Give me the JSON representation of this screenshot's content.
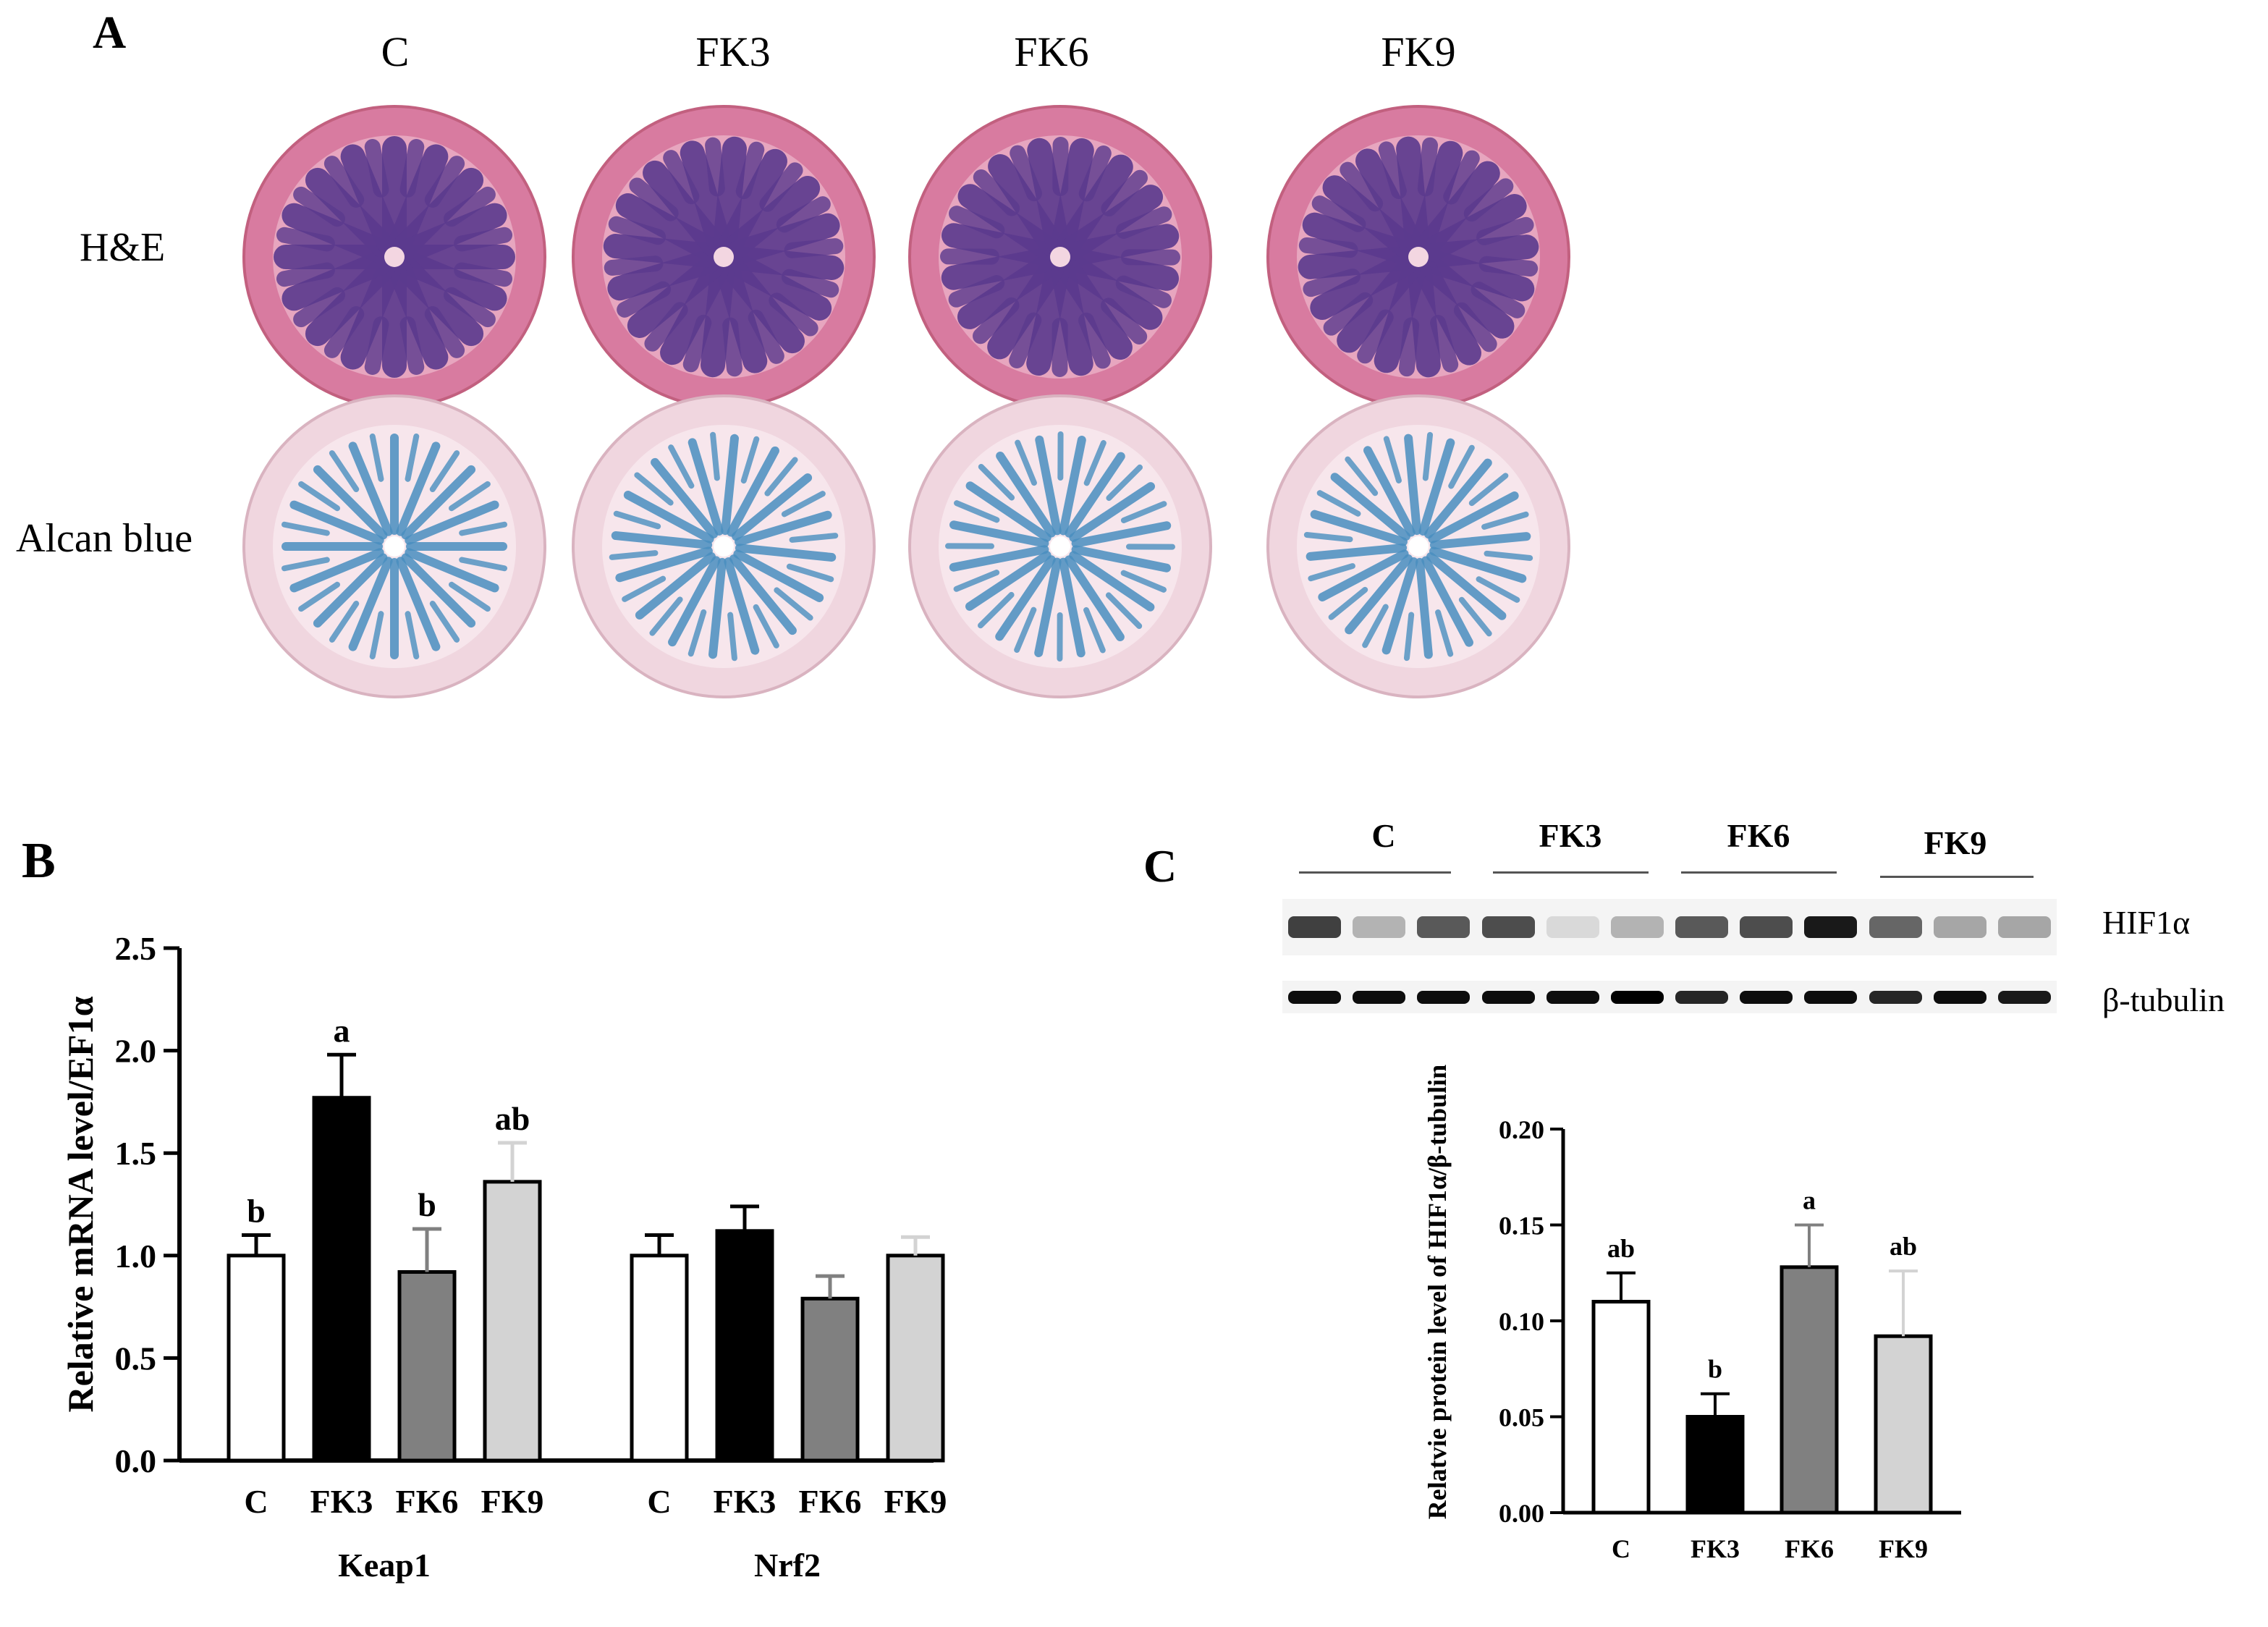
{
  "panel_a": {
    "letter": "A",
    "columns": [
      "C",
      "FK3",
      "FK6",
      "FK9"
    ],
    "rows": [
      "H&E",
      "Alcan blue"
    ],
    "colors": {
      "he_outer": "#d87ba0",
      "he_inner": "#5b3a8e",
      "ab_outer": "#f0d6df",
      "ab_inner": "#4a8fc0"
    }
  },
  "panel_b": {
    "letter": "B",
    "chart_data": {
      "type": "bar",
      "ylabel": "Relative mRNA level/EF1α",
      "ylim": [
        0,
        2.5
      ],
      "yticks": [
        "0.0",
        "0.5",
        "1.0",
        "1.5",
        "2.0",
        "2.5"
      ],
      "groups": [
        {
          "name": "Keap1",
          "bars": [
            {
              "label": "C",
              "value": 1.0,
              "error": 0.1,
              "sig": "b",
              "color": "#ffffff"
            },
            {
              "label": "FK3",
              "value": 1.77,
              "error": 0.21,
              "sig": "a",
              "color": "#000000"
            },
            {
              "label": "FK6",
              "value": 0.92,
              "error": 0.21,
              "sig": "b",
              "color": "#808080"
            },
            {
              "label": "FK9",
              "value": 1.36,
              "error": 0.19,
              "sig": "ab",
              "color": "#d3d3d3"
            }
          ]
        },
        {
          "name": "Nrf2",
          "bars": [
            {
              "label": "C",
              "value": 1.0,
              "error": 0.1,
              "sig": "",
              "color": "#ffffff"
            },
            {
              "label": "FK3",
              "value": 1.12,
              "error": 0.12,
              "sig": "",
              "color": "#000000"
            },
            {
              "label": "FK6",
              "value": 0.79,
              "error": 0.11,
              "sig": "",
              "color": "#808080"
            },
            {
              "label": "FK9",
              "value": 1.0,
              "error": 0.09,
              "sig": "",
              "color": "#d3d3d3"
            }
          ]
        }
      ]
    }
  },
  "panel_c": {
    "letter": "C",
    "blot_groups": [
      "C",
      "FK3",
      "FK6",
      "FK9"
    ],
    "blot_rows": [
      "HIF1α",
      "β-tubulin"
    ],
    "hif_band_darkness": [
      0.75,
      0.3,
      0.65,
      0.7,
      0.15,
      0.3,
      0.65,
      0.7,
      0.9,
      0.6,
      0.35,
      0.35
    ],
    "tub_band_darkness": [
      0.95,
      0.95,
      0.95,
      0.95,
      0.95,
      1.0,
      0.85,
      0.95,
      0.95,
      0.85,
      0.95,
      0.9
    ],
    "chart_data": {
      "type": "bar",
      "ylabel": "Relatvie protein level of  HIF1α/β-tubulin",
      "ylim": [
        0,
        0.2
      ],
      "yticks": [
        "0.00",
        "0.05",
        "0.10",
        "0.15",
        "0.20"
      ],
      "bars": [
        {
          "label": "C",
          "value": 0.11,
          "error": 0.015,
          "sig": "ab",
          "color": "#ffffff"
        },
        {
          "label": "FK3",
          "value": 0.05,
          "error": 0.012,
          "sig": "b",
          "color": "#000000"
        },
        {
          "label": "FK6",
          "value": 0.128,
          "error": 0.022,
          "sig": "a",
          "color": "#808080"
        },
        {
          "label": "FK9",
          "value": 0.092,
          "error": 0.034,
          "sig": "ab",
          "color": "#d3d3d3"
        }
      ]
    }
  }
}
